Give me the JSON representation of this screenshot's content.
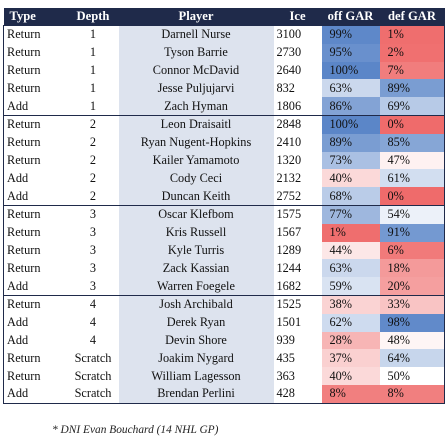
{
  "headers": [
    "Type",
    "Depth",
    "Player",
    "Ice",
    "off GAR",
    "def GAR"
  ],
  "rows": [
    {
      "type": "Return",
      "depth": "1",
      "player": "Darnell Nurse",
      "ice": "3100",
      "off": "99%",
      "def": "1%",
      "off_v": 99,
      "def_v": 1
    },
    {
      "type": "Return",
      "depth": "1",
      "player": "Tyson Barrie",
      "ice": "2730",
      "off": "95%",
      "def": "2%",
      "off_v": 95,
      "def_v": 2
    },
    {
      "type": "Return",
      "depth": "1",
      "player": "Connor McDavid",
      "ice": "2640",
      "off": "100%",
      "def": "7%",
      "off_v": 100,
      "def_v": 7
    },
    {
      "type": "Return",
      "depth": "1",
      "player": "Jesse Puljujarvi",
      "ice": "832",
      "off": "63%",
      "def": "89%",
      "off_v": 63,
      "def_v": 89
    },
    {
      "type": "Add",
      "depth": "1",
      "player": "Zach Hyman",
      "ice": "1806",
      "off": "86%",
      "def": "69%",
      "off_v": 86,
      "def_v": 69
    },
    {
      "type": "Return",
      "depth": "2",
      "player": "Leon Draisaitl",
      "ice": "2848",
      "off": "100%",
      "def": "0%",
      "off_v": 100,
      "def_v": 0
    },
    {
      "type": "Return",
      "depth": "2",
      "player": "Ryan Nugent-Hopkins",
      "ice": "2410",
      "off": "89%",
      "def": "85%",
      "off_v": 89,
      "def_v": 85
    },
    {
      "type": "Return",
      "depth": "2",
      "player": "Kailer Yamamoto",
      "ice": "1320",
      "off": "73%",
      "def": "47%",
      "off_v": 73,
      "def_v": 47
    },
    {
      "type": "Add",
      "depth": "2",
      "player": "Cody Ceci",
      "ice": "2132",
      "off": "40%",
      "def": "61%",
      "off_v": 40,
      "def_v": 61
    },
    {
      "type": "Add",
      "depth": "2",
      "player": "Duncan Keith",
      "ice": "2752",
      "off": "68%",
      "def": "0%",
      "off_v": 68,
      "def_v": 0
    },
    {
      "type": "Return",
      "depth": "3",
      "player": "Oscar Klefbom",
      "ice": "1575",
      "off": "77%",
      "def": "54%",
      "off_v": 77,
      "def_v": 54
    },
    {
      "type": "Return",
      "depth": "3",
      "player": "Kris Russell",
      "ice": "1567",
      "off": "1%",
      "def": "91%",
      "off_v": 1,
      "def_v": 91
    },
    {
      "type": "Return",
      "depth": "3",
      "player": "Kyle Turris",
      "ice": "1289",
      "off": "44%",
      "def": "6%",
      "off_v": 44,
      "def_v": 6
    },
    {
      "type": "Return",
      "depth": "3",
      "player": "Zack Kassian",
      "ice": "1244",
      "off": "63%",
      "def": "18%",
      "off_v": 63,
      "def_v": 18
    },
    {
      "type": "Add",
      "depth": "3",
      "player": "Warren Foegele",
      "ice": "1682",
      "off": "59%",
      "def": "20%",
      "off_v": 59,
      "def_v": 20
    },
    {
      "type": "Return",
      "depth": "4",
      "player": "Josh Archibald",
      "ice": "1525",
      "off": "38%",
      "def": "33%",
      "off_v": 38,
      "def_v": 33
    },
    {
      "type": "Add",
      "depth": "4",
      "player": "Derek Ryan",
      "ice": "1501",
      "off": "62%",
      "def": "98%",
      "off_v": 62,
      "def_v": 98
    },
    {
      "type": "Add",
      "depth": "4",
      "player": "Devin Shore",
      "ice": "939",
      "off": "28%",
      "def": "48%",
      "off_v": 28,
      "def_v": 48
    },
    {
      "type": "Return",
      "depth": "Scratch",
      "player": "Joakim Nygard",
      "ice": "435",
      "off": "37%",
      "def": "64%",
      "off_v": 37,
      "def_v": 64
    },
    {
      "type": "Return",
      "depth": "Scratch",
      "player": "William Lagesson",
      "ice": "363",
      "off": "40%",
      "def": "50%",
      "off_v": 40,
      "def_v": 50
    },
    {
      "type": "Add",
      "depth": "Scratch",
      "player": "Brendan Perlini",
      "ice": "428",
      "off": "8%",
      "def": "8%",
      "off_v": 8,
      "def_v": 8
    }
  ],
  "group_starts": [
    0,
    5,
    10,
    15
  ],
  "colors": {
    "header_bg": "#1f2a4a",
    "high": "#5b86c8",
    "low": "#ef6b6b",
    "mid": "#ffffff",
    "player_bg": "#dde3ee"
  },
  "footnote": "* DNI Evan Bouchard (14 NHL GP)"
}
